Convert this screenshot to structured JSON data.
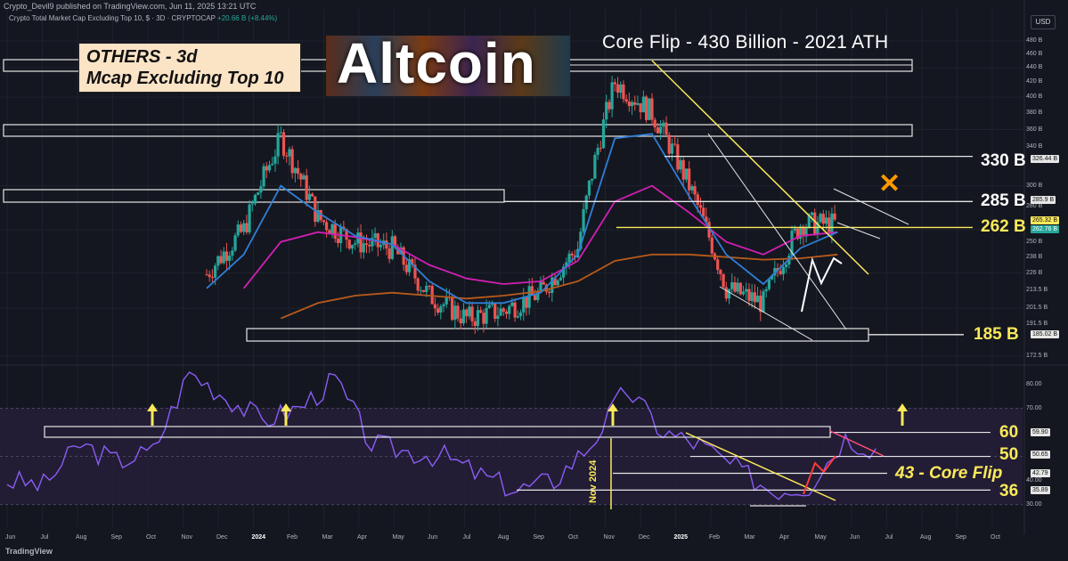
{
  "header": {
    "publisher": "Crypto_Devil9 published on TradingView.com, Jun 11, 2025 13:21 UTC",
    "symbol": "Crypto Total Market Cap Excluding Top 10, $ · 3D · CRYPTOCAP",
    "change": "+20.66 B (+8.44%)",
    "currency": "USD"
  },
  "annotations": {
    "others_line1": "OTHERS - 3d",
    "others_line2": "Mcap Excluding Top 10",
    "logo_text": "Altcoin",
    "title": "Core Flip - 430 Billion - 2021 ATH",
    "nov_2024": "Nov 2024",
    "x_mark": "✕"
  },
  "levels": {
    "l330": "330 B",
    "l285": "285 B",
    "l262": "262 B",
    "l185": "185 B",
    "rsi60": "60",
    "rsi50": "50",
    "rsi43": "43 - Core Flip",
    "rsi36": "36"
  },
  "price_axis": [
    "480 B",
    "460 B",
    "440 B",
    "420 B",
    "400 B",
    "380 B",
    "360 B",
    "340 B",
    "300 B",
    "280 B",
    "250 B",
    "238 B",
    "226 B",
    "213.5 B",
    "201.5 B",
    "191.5 B",
    "172.5 B"
  ],
  "price_tags": [
    "326.44 B",
    "285.9 B",
    "265.32 B",
    "262.76 B",
    "185.02 B"
  ],
  "rsi_axis": [
    "80.00",
    "70.00",
    "40.00",
    "30.00"
  ],
  "rsi_tags": [
    "59.90",
    "50.65",
    "42.79",
    "35.89"
  ],
  "time_axis": [
    "Jun",
    "Jul",
    "Aug",
    "Sep",
    "Oct",
    "Nov",
    "Dec",
    "2024",
    "Feb",
    "Mar",
    "Apr",
    "May",
    "Jun",
    "Jul",
    "Aug",
    "Sep",
    "Oct",
    "Nov",
    "Dec",
    "2025",
    "Feb",
    "Mar",
    "Apr",
    "May",
    "Jun",
    "Jul",
    "Aug",
    "Sep",
    "Oct"
  ],
  "footer": "TradingView",
  "colors": {
    "up": "#26a69a",
    "down": "#ef5350",
    "ema_fast": "#2f7fd6",
    "ema_mid": "#d11fb3",
    "ema_slow": "#b85a1c",
    "rsi": "#8b5cf6",
    "accent": "#fbe95a"
  },
  "chart_data": {
    "type": "candlestick",
    "y_scale": "log",
    "ylim": [
      172.5,
      480
    ],
    "x": [
      "2023-06",
      "2023-07",
      "2023-08",
      "2023-09",
      "2023-10",
      "2023-11",
      "2023-12",
      "2024-01",
      "2024-02",
      "2024-03",
      "2024-04",
      "2024-05",
      "2024-06",
      "2024-07",
      "2024-08",
      "2024-09",
      "2024-10",
      "2024-11",
      "2024-12",
      "2025-01",
      "2025-02",
      "2025-03",
      "2025-04",
      "2025-05",
      "2025-06"
    ],
    "close": [
      150,
      145,
      140,
      138,
      142,
      175,
      215,
      225,
      260,
      350,
      270,
      250,
      245,
      210,
      195,
      200,
      212,
      245,
      420,
      380,
      300,
      215,
      205,
      265,
      265
    ],
    "ema_fast": [
      148,
      146,
      142,
      140,
      143,
      165,
      200,
      215,
      240,
      300,
      275,
      255,
      248,
      220,
      205,
      205,
      212,
      240,
      350,
      355,
      290,
      240,
      218,
      245,
      258
    ],
    "ema_mid": [
      155,
      150,
      146,
      143,
      145,
      158,
      180,
      195,
      215,
      250,
      258,
      254,
      248,
      232,
      222,
      218,
      220,
      235,
      285,
      300,
      275,
      250,
      240,
      255,
      258
    ],
    "ema_slow": [
      170,
      166,
      162,
      158,
      156,
      158,
      165,
      172,
      180,
      195,
      205,
      210,
      212,
      210,
      208,
      210,
      213,
      220,
      235,
      240,
      240,
      238,
      236,
      237,
      240
    ],
    "levels": [
      185,
      262,
      285,
      330,
      430
    ],
    "rsi": [
      40,
      38,
      55,
      48,
      52,
      85,
      75,
      65,
      70,
      82,
      55,
      52,
      50,
      42,
      36,
      40,
      55,
      78,
      60,
      55,
      45,
      36,
      38,
      58,
      52
    ],
    "rsi_levels": [
      36,
      43,
      50,
      60
    ],
    "rsi_ylim": [
      28,
      85
    ],
    "legend": "none",
    "grid": true
  }
}
